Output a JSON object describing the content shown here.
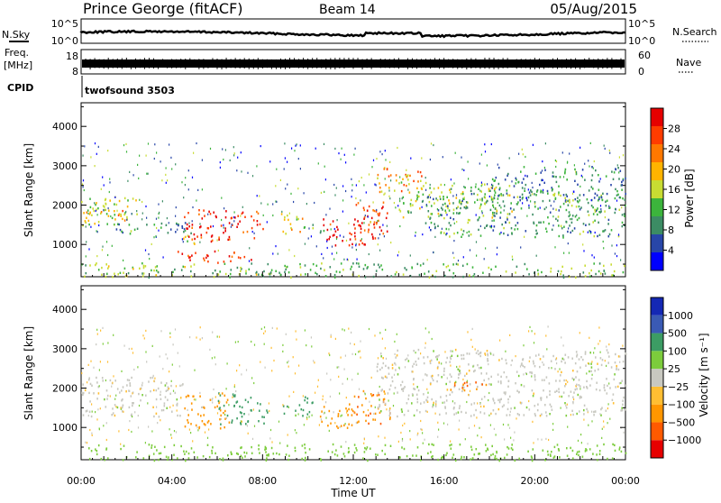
{
  "header": {
    "title": "Prince George (fitACF)",
    "beam": "Beam 14",
    "date": "05/Aug/2015"
  },
  "strip": {
    "nsky_label": "N.Sky",
    "nsearch_label": "N.Search",
    "noise_ticks": [
      "10^5",
      "10^0"
    ],
    "freq_label_1": "Freq.",
    "freq_label_2": "[MHz]",
    "freq_ticks": [
      "18",
      "8"
    ],
    "nave_label": "Nave",
    "nave_ticks": [
      "60",
      "0"
    ],
    "cpid_label": "CPID",
    "cpid_value": "twofsound 3503"
  },
  "colors": {
    "power": [
      "#0000ff",
      "#2846a8",
      "#3c8c64",
      "#3cb43c",
      "#c8dc32",
      "#ffb400",
      "#ff7800",
      "#ff3c00",
      "#e60000"
    ],
    "velocity": [
      "#e60000",
      "#ff5a00",
      "#ff9600",
      "#ffbe32",
      "#c8c8c0",
      "#7ccc3c",
      "#3c9c64",
      "#3a5ab4",
      "#1428b4"
    ]
  },
  "chart_data": [
    {
      "type": "heatmap",
      "name": "power",
      "xlabel": "",
      "ylabel": "Slant Range [km]",
      "xlim": [
        0,
        24
      ],
      "ylim": [
        180,
        4600
      ],
      "y_ticks": [
        1000,
        2000,
        3000,
        4000
      ],
      "colorbar_label": "Power [dB]",
      "colorbar_ticks": [
        "28",
        "24",
        "20",
        "16",
        "12",
        "8",
        "4"
      ],
      "clim": [
        0,
        30
      ],
      "features": [
        {
          "t": [
            0.0,
            2.6
          ],
          "r": [
            1500,
            2300
          ],
          "level": 15
        },
        {
          "t": [
            0.0,
            2.0
          ],
          "r": [
            1600,
            1900
          ],
          "level": 20
        },
        {
          "t": [
            1.5,
            4.8
          ],
          "r": [
            1300,
            1600
          ],
          "level": 9
        },
        {
          "t": [
            4.2,
            5.0
          ],
          "r": [
            1000,
            1350
          ],
          "level": 14
        },
        {
          "t": [
            4.0,
            7.5
          ],
          "r": [
            550,
            850
          ],
          "level": 26
        },
        {
          "t": [
            4.5,
            8.0
          ],
          "r": [
            1100,
            1900
          ],
          "level": 27
        },
        {
          "t": [
            8.6,
            9.8
          ],
          "r": [
            1300,
            1800
          ],
          "level": 18
        },
        {
          "t": [
            9.8,
            10.7
          ],
          "r": [
            1300,
            1600
          ],
          "level": 10
        },
        {
          "t": [
            10.5,
            13.0
          ],
          "r": [
            1000,
            1700
          ],
          "level": 28
        },
        {
          "t": [
            12.0,
            13.5
          ],
          "r": [
            1150,
            2100
          ],
          "level": 25
        },
        {
          "t": [
            13.0,
            15.0
          ],
          "r": [
            2300,
            3000
          ],
          "level": 20
        },
        {
          "t": [
            14.0,
            19.0
          ],
          "r": [
            1700,
            2600
          ],
          "level": 14
        },
        {
          "t": [
            15.0,
            24.0
          ],
          "r": [
            1200,
            2400
          ],
          "level": 10
        },
        {
          "t": [
            18.0,
            24.0
          ],
          "r": [
            2100,
            3000
          ],
          "level": 8
        },
        {
          "t": [
            0.0,
            24.0
          ],
          "r": [
            180,
            550
          ],
          "level": 12
        }
      ]
    },
    {
      "type": "heatmap",
      "name": "velocity",
      "xlabel": "Time UT",
      "ylabel": "Slant Range [km]",
      "xlim": [
        0,
        24
      ],
      "ylim": [
        180,
        4600
      ],
      "x_ticks": [
        "00:00",
        "04:00",
        "08:00",
        "12:00",
        "16:00",
        "20:00",
        "00:00"
      ],
      "y_ticks": [
        1000,
        2000,
        3000,
        4000
      ],
      "colorbar_label": "Velocity [m s⁻¹]",
      "colorbar_ticks": [
        "1000",
        "500",
        "100",
        "25",
        "−25",
        "−100",
        "−500",
        "−1000"
      ],
      "clim": [
        -1000,
        1000
      ],
      "features": [
        {
          "t": [
            0.0,
            4.5
          ],
          "r": [
            1300,
            2300
          ],
          "vel": 0
        },
        {
          "t": [
            4.5,
            6.5
          ],
          "r": [
            1000,
            1900
          ],
          "vel": -300
        },
        {
          "t": [
            6.0,
            8.2
          ],
          "r": [
            1100,
            1900
          ],
          "vel": 200
        },
        {
          "t": [
            8.8,
            10.2
          ],
          "r": [
            1300,
            1800
          ],
          "vel": 150
        },
        {
          "t": [
            10.5,
            12.0
          ],
          "r": [
            1000,
            1700
          ],
          "vel": -200
        },
        {
          "t": [
            12.0,
            13.6
          ],
          "r": [
            1100,
            2000
          ],
          "vel": -450
        },
        {
          "t": [
            13.0,
            24.0
          ],
          "r": [
            1300,
            3000
          ],
          "vel": 0
        },
        {
          "t": [
            16.0,
            18.0
          ],
          "r": [
            1950,
            2200
          ],
          "vel": -500
        },
        {
          "t": [
            0.0,
            24.0
          ],
          "r": [
            180,
            600
          ],
          "vel": 60
        }
      ]
    }
  ]
}
